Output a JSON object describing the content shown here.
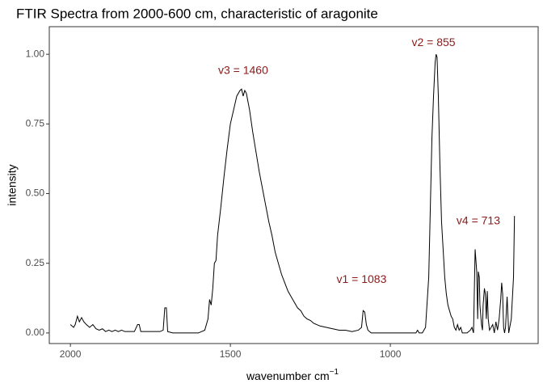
{
  "chart_data": {
    "type": "line",
    "title": "FTIR Spectra from 2000-600 cm, characteristic of aragonite",
    "xlabel": "wavenumber cm",
    "xlabel_superscript": "−1",
    "ylabel": "intensity",
    "x_reversed": true,
    "xlim": [
      2066,
      538
    ],
    "ylim": [
      -0.038,
      1.099
    ],
    "xticks": [
      2000,
      1500,
      1000
    ],
    "yticks": [
      {
        "value": 0,
        "label": "0.00"
      },
      {
        "value": 0.25,
        "label": "0.25"
      },
      {
        "value": 0.5,
        "label": "0.50"
      },
      {
        "value": 0.75,
        "label": "0.75"
      },
      {
        "value": 1,
        "label": "1.00"
      }
    ],
    "grid": false,
    "color": "#000000",
    "annotation_color": "#8b1a1a",
    "annotations": [
      {
        "text": "v3 = 1460",
        "x": 1460,
        "y": 0.94
      },
      {
        "text": "v2 = 855",
        "x": 865,
        "y": 1.04
      },
      {
        "text": "v1 = 1083",
        "x": 1090,
        "y": 0.19
      },
      {
        "text": "v4 = 713",
        "x": 725,
        "y": 0.4
      }
    ],
    "x": [
      2000,
      1990,
      1985,
      1978,
      1972,
      1965,
      1958,
      1950,
      1940,
      1930,
      1920,
      1910,
      1900,
      1890,
      1880,
      1870,
      1860,
      1850,
      1840,
      1830,
      1800,
      1790,
      1785,
      1780,
      1760,
      1720,
      1710,
      1705,
      1700,
      1696,
      1680,
      1650,
      1600,
      1580,
      1570,
      1565,
      1560,
      1555,
      1550,
      1545,
      1540,
      1530,
      1520,
      1510,
      1500,
      1490,
      1480,
      1470,
      1465,
      1460,
      1455,
      1450,
      1445,
      1440,
      1430,
      1420,
      1410,
      1400,
      1390,
      1380,
      1370,
      1360,
      1350,
      1340,
      1330,
      1320,
      1310,
      1300,
      1290,
      1280,
      1270,
      1260,
      1250,
      1240,
      1230,
      1220,
      1200,
      1180,
      1160,
      1140,
      1120,
      1100,
      1090,
      1085,
      1080,
      1075,
      1070,
      1060,
      1000,
      950,
      920,
      915,
      910,
      900,
      890,
      880,
      875,
      870,
      865,
      860,
      857,
      854,
      850,
      845,
      840,
      835,
      830,
      825,
      820,
      815,
      810,
      805,
      800,
      795,
      790,
      785,
      780,
      775,
      760,
      750,
      745,
      740,
      735,
      730,
      727,
      725,
      722,
      720,
      715,
      712,
      710,
      706,
      703,
      700,
      697,
      694,
      690,
      680,
      675,
      670,
      665,
      660,
      655,
      652,
      649,
      646,
      643,
      640,
      635,
      630,
      622,
      615,
      612
    ],
    "values": [
      0.03,
      0.02,
      0.03,
      0.06,
      0.04,
      0.055,
      0.04,
      0.03,
      0.02,
      0.03,
      0.015,
      0.01,
      0.015,
      0.005,
      0.01,
      0.005,
      0.01,
      0.005,
      0.01,
      0.005,
      0.005,
      0.03,
      0.03,
      0.005,
      0.005,
      0.005,
      0.01,
      0.09,
      0.09,
      0.005,
      0,
      0,
      0,
      0.01,
      0.05,
      0.12,
      0.1,
      0.16,
      0.25,
      0.26,
      0.35,
      0.45,
      0.56,
      0.66,
      0.75,
      0.8,
      0.85,
      0.87,
      0.875,
      0.85,
      0.87,
      0.86,
      0.83,
      0.8,
      0.72,
      0.65,
      0.58,
      0.52,
      0.46,
      0.4,
      0.35,
      0.29,
      0.25,
      0.21,
      0.18,
      0.15,
      0.13,
      0.11,
      0.09,
      0.08,
      0.06,
      0.05,
      0.045,
      0.035,
      0.03,
      0.025,
      0.02,
      0.015,
      0.01,
      0.01,
      0.005,
      0.01,
      0.02,
      0.08,
      0.075,
      0.03,
      0.01,
      0,
      0,
      0,
      0,
      0.01,
      0,
      0,
      0.02,
      0.2,
      0.45,
      0.7,
      0.85,
      0.97,
      1.0,
      0.99,
      0.85,
      0.6,
      0.4,
      0.3,
      0.2,
      0.14,
      0.1,
      0.08,
      0.06,
      0.05,
      0.02,
      0.01,
      0.03,
      0.01,
      0.02,
      0,
      0,
      0.01,
      0.02,
      0,
      0.3,
      0.22,
      0.05,
      0.22,
      0.2,
      0.1,
      0.03,
      0.01,
      0.1,
      0.16,
      0.14,
      0.05,
      0.15,
      0.05,
      0.01,
      0.03,
      0,
      0.04,
      0.01,
      0.05,
      0.12,
      0.18,
      0.14,
      0.02,
      0,
      0.02,
      0.13,
      0,
      0.05,
      0.2,
      0.42
    ]
  }
}
